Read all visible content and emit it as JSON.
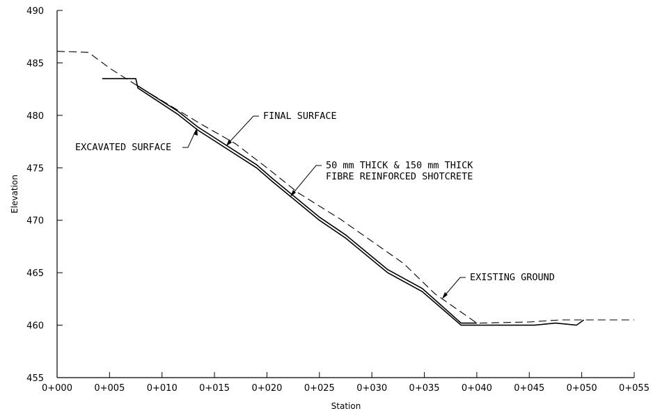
{
  "chart_data": {
    "type": "line",
    "title": "",
    "xlabel": "Station",
    "ylabel": "Elevation",
    "xlim": [
      0,
      55
    ],
    "ylim": [
      455,
      490
    ],
    "x_ticks": [
      0,
      5,
      10,
      15,
      20,
      25,
      30,
      35,
      40,
      45,
      50,
      55
    ],
    "x_tick_labels": [
      "0+000",
      "0+005",
      "0+010",
      "0+015",
      "0+020",
      "0+025",
      "0+030",
      "0+035",
      "0+040",
      "0+045",
      "0+050",
      "0+055"
    ],
    "y_ticks": [
      455,
      460,
      465,
      470,
      475,
      480,
      485,
      490
    ],
    "y_tick_labels": [
      "455",
      "460",
      "465",
      "470",
      "475",
      "480",
      "485",
      "490"
    ],
    "grid": false,
    "series": [
      {
        "name": "EXISTING GROUND",
        "style": "dashed",
        "x": [
          0,
          3,
          5,
          8,
          11,
          14,
          17,
          20,
          23,
          27,
          30,
          33,
          36,
          40,
          45,
          48,
          50,
          55
        ],
        "y": [
          486.1,
          486.0,
          484.5,
          482.6,
          480.8,
          479.0,
          477.3,
          475.0,
          472.6,
          470.1,
          468.0,
          465.9,
          463.0,
          460.2,
          460.3,
          460.5,
          460.5,
          460.5
        ]
      },
      {
        "name": "FINAL SURFACE",
        "style": "solid",
        "x": [
          7.7,
          11.5,
          13.4,
          19,
          20.5,
          25,
          27.5,
          31.5,
          34.8,
          38.5,
          40
        ],
        "y": [
          482.8,
          480.4,
          478.9,
          475.3,
          474.0,
          470.3,
          468.6,
          465.3,
          463.5,
          460.2,
          460.2
        ]
      },
      {
        "name": "EXCAVATED SURFACE",
        "style": "solid",
        "x": [
          4.3,
          7.5,
          7.7,
          11.5,
          13.4,
          19,
          20.5,
          25,
          27.5,
          31.5,
          34.8,
          38.5,
          45.5,
          47.5,
          49.5,
          50.2
        ],
        "y": [
          483.5,
          483.5,
          482.6,
          480.1,
          478.6,
          475.0,
          473.7,
          470.0,
          468.3,
          465.0,
          463.2,
          460.0,
          460.0,
          460.2,
          460.0,
          460.5
        ]
      }
    ],
    "annotations": [
      {
        "text": "FINAL SURFACE",
        "points_to_series": "FINAL SURFACE"
      },
      {
        "text": "EXCAVATED SURFACE",
        "points_to_series": "EXCAVATED SURFACE"
      },
      {
        "text": "50 mm THICK & 150 mm THICK",
        "points_to_series": "FINAL SURFACE"
      },
      {
        "text": "FIBRE REINFORCED SHOTCRETE",
        "points_to_series": "FINAL SURFACE"
      },
      {
        "text": "EXISTING GROUND",
        "points_to_series": "EXISTING GROUND"
      }
    ]
  }
}
